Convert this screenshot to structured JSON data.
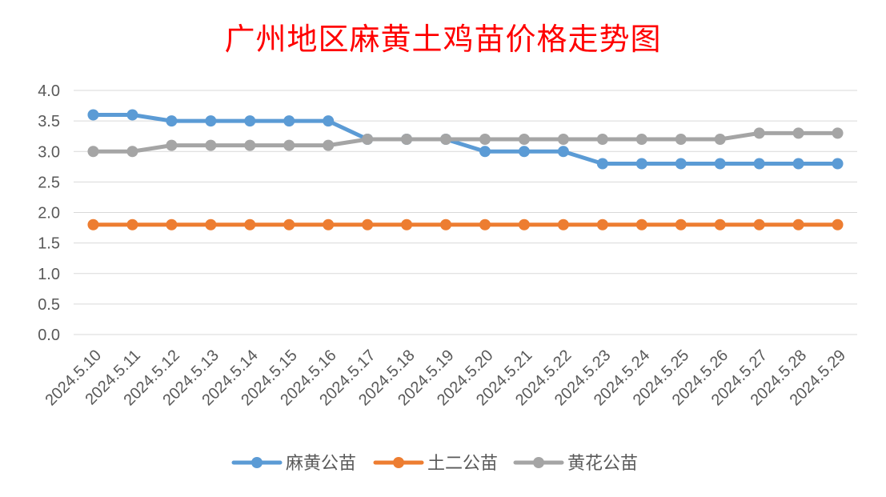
{
  "chart_data": {
    "type": "line",
    "title": "广州地区麻黄土鸡苗价格走势图",
    "title_color": "#ff0000",
    "xlabel": "",
    "ylabel": "",
    "ylim": [
      0,
      4.0
    ],
    "yticks": [
      "0.0",
      "0.5",
      "1.0",
      "1.5",
      "2.0",
      "2.5",
      "3.0",
      "3.5",
      "4.0"
    ],
    "grid": true,
    "legend_position": "bottom",
    "categories": [
      "2024.5.10",
      "2024.5.11",
      "2024.5.12",
      "2024.5.13",
      "2024.5.14",
      "2024.5.15",
      "2024.5.16",
      "2024.5.17",
      "2024.5.18",
      "2024.5.19",
      "2024.5.20",
      "2024.5.21",
      "2024.5.22",
      "2024.5.23",
      "2024.5.24",
      "2024.5.25",
      "2024.5.26",
      "2024.5.27",
      "2024.5.28",
      "2024.5.29"
    ],
    "series": [
      {
        "name": "麻黄公苗",
        "color": "#5b9bd5",
        "values": [
          3.6,
          3.6,
          3.5,
          3.5,
          3.5,
          3.5,
          3.5,
          3.2,
          3.2,
          3.2,
          3.0,
          3.0,
          3.0,
          2.8,
          2.8,
          2.8,
          2.8,
          2.8,
          2.8,
          2.8
        ]
      },
      {
        "name": "土二公苗",
        "color": "#ed7d31",
        "values": [
          1.8,
          1.8,
          1.8,
          1.8,
          1.8,
          1.8,
          1.8,
          1.8,
          1.8,
          1.8,
          1.8,
          1.8,
          1.8,
          1.8,
          1.8,
          1.8,
          1.8,
          1.8,
          1.8,
          1.8
        ]
      },
      {
        "name": "黄花公苗",
        "color": "#a5a5a5",
        "values": [
          3.0,
          3.0,
          3.1,
          3.1,
          3.1,
          3.1,
          3.1,
          3.2,
          3.2,
          3.2,
          3.2,
          3.2,
          3.2,
          3.2,
          3.2,
          3.2,
          3.2,
          3.3,
          3.3,
          3.3
        ]
      }
    ]
  }
}
